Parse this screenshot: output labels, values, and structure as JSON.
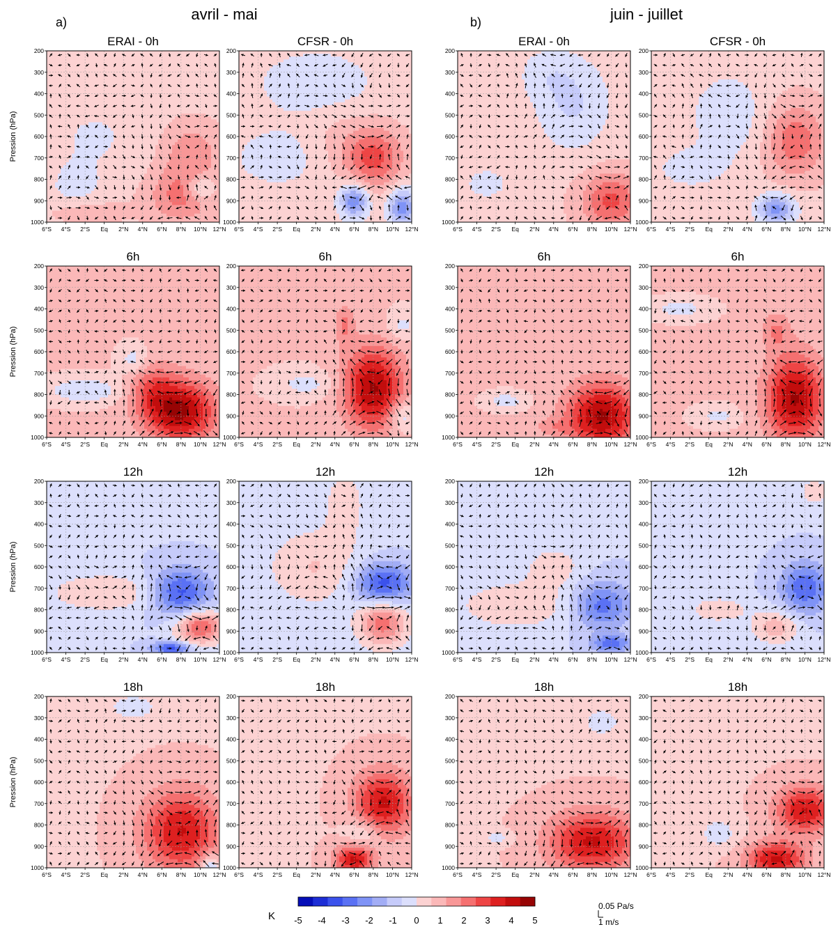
{
  "chart_data": {
    "type": "heatmap",
    "headers": {
      "group_a_letter": "a)",
      "group_a_title": "avril - mai",
      "group_b_letter": "b)",
      "group_b_title": "juin - juillet"
    },
    "ylabel": "Pression (hPa)",
    "y_ticks": [
      "200",
      "300",
      "400",
      "500",
      "600",
      "700",
      "800",
      "900",
      "1000"
    ],
    "y_levels": [
      200,
      300,
      400,
      500,
      600,
      700,
      800,
      900,
      1000
    ],
    "x_ticks": [
      "6°S",
      "4°S",
      "2°S",
      "Eq",
      "2°N",
      "4°N",
      "6°N",
      "8°N",
      "10°N",
      "12°N"
    ],
    "x_values": [
      -6,
      -4,
      -2,
      0,
      2,
      4,
      6,
      8,
      10,
      12
    ],
    "xlim": [
      -6,
      12
    ],
    "ylim": [
      1000,
      200
    ],
    "column_titles": [
      "ERAI - 0h",
      "CFSR - 0h",
      "ERAI - 0h",
      "CFSR - 0h"
    ],
    "row_titles": [
      "6h",
      "12h",
      "18h"
    ],
    "colorbar": {
      "unit": "K",
      "ticks": [
        "-5",
        "-4",
        "-3",
        "-2",
        "-1",
        "0",
        "1",
        "2",
        "3",
        "4",
        "5"
      ],
      "bounds": [
        -5,
        5
      ],
      "colors": [
        "#050eb8",
        "#1d2ed6",
        "#3b52ec",
        "#5a71f4",
        "#7f93f6",
        "#a2adf5",
        "#c6cbfa",
        "#dcdffc",
        "#fcd2d2",
        "#fbb8b8",
        "#f89797",
        "#f57070",
        "#ee4545",
        "#de2020",
        "#c20d0d",
        "#970404"
      ]
    },
    "vector_reference": {
      "vertical": "0.05 Pa/s",
      "horizontal": "1 m/s"
    },
    "panels": [
      {
        "row": 0,
        "col": 0,
        "title": "ERAI - 0h",
        "sign": 1,
        "base": 0.45,
        "blobs": [
          [
            8,
            880,
            3.4,
            1.6,
            120,
            [
              0.2,
              1.0
            ]
          ],
          [
            -2,
            950,
            4,
            0.7,
            60,
            [
              0.2,
              1.0
            ]
          ],
          [
            9,
            680,
            3,
            1.3,
            140,
            [
              0.5,
              1.0
            ]
          ],
          [
            -1,
            600,
            6,
            -0.5,
            200,
            [
              0.2,
              1.0
            ]
          ],
          [
            -3,
            850,
            3,
            -0.6,
            120,
            [
              0.2,
              1.0
            ]
          ],
          [
            10,
            840,
            1.5,
            -1.5,
            60,
            [
              0.4,
              1.0
            ]
          ]
        ]
      },
      {
        "row": 0,
        "col": 1,
        "title": "CFSR - 0h",
        "sign": 1,
        "base": 0.4,
        "blobs": [
          [
            8,
            700,
            3,
            2.4,
            140,
            [
              0.3,
              1.0
            ]
          ],
          [
            6,
            900,
            1.5,
            -2.8,
            80,
            [
              0.3,
              1.0
            ]
          ],
          [
            11,
            930,
            1.5,
            -2.6,
            90,
            [
              0.3,
              1.0
            ]
          ],
          [
            2,
            350,
            6,
            -0.9,
            150,
            [
              0.3,
              1.0
            ]
          ],
          [
            -2,
            700,
            5,
            -0.7,
            150,
            [
              0.3,
              1.0
            ]
          ],
          [
            4,
            600,
            3,
            0.4,
            150,
            [
              0.3,
              1.0
            ]
          ]
        ]
      },
      {
        "row": 0,
        "col": 2,
        "title": "ERAI - 0h",
        "sign": 1,
        "base": 0.5,
        "blobs": [
          [
            10,
            900,
            3,
            2.2,
            130,
            [
              0.3,
              1.0
            ]
          ],
          [
            6,
            450,
            4,
            -1.2,
            220,
            [
              0.5,
              1.0
            ]
          ],
          [
            -3,
            820,
            2.5,
            -0.8,
            80,
            [
              0.3,
              1.0
            ]
          ],
          [
            3,
            300,
            3,
            -0.6,
            120,
            [
              0.3,
              1.0
            ]
          ]
        ]
      },
      {
        "row": 0,
        "col": 3,
        "title": "CFSR - 0h",
        "sign": 1,
        "base": 0.45,
        "blobs": [
          [
            9,
            620,
            3,
            1.9,
            170,
            [
              0.3,
              1.0
            ]
          ],
          [
            7,
            940,
            2,
            -2.6,
            70,
            [
              0.3,
              1.0
            ]
          ],
          [
            2,
            500,
            4,
            -0.9,
            200,
            [
              0.3,
              1.0
            ]
          ],
          [
            -2,
            750,
            4,
            -0.7,
            100,
            [
              0.3,
              1.0
            ]
          ]
        ]
      },
      {
        "row": 1,
        "col": 0,
        "title": "6h",
        "sign": -1,
        "base": 0.7,
        "blobs": [
          [
            8,
            880,
            3.5,
            3.8,
            140,
            [
              0.2,
              1.0
            ]
          ],
          [
            5,
            780,
            2.5,
            1.6,
            130,
            [
              0.2,
              1.0
            ]
          ],
          [
            -2,
            780,
            4,
            -1.3,
            60,
            [
              0.3,
              1.0
            ]
          ],
          [
            3,
            640,
            1.5,
            -1.1,
            70,
            [
              0.3,
              1.0
            ]
          ]
        ]
      },
      {
        "row": 1,
        "col": 1,
        "title": "6h",
        "sign": -1,
        "base": 0.65,
        "blobs": [
          [
            8,
            770,
            3,
            3.8,
            190,
            [
              0.2,
              1.0
            ]
          ],
          [
            5,
            470,
            1,
            1.3,
            90,
            [
              0.3,
              1.0
            ]
          ],
          [
            11,
            900,
            1.5,
            -1.4,
            70,
            [
              0.3,
              1.0
            ]
          ],
          [
            1,
            750,
            3,
            -0.9,
            60,
            [
              0.3,
              1.0
            ]
          ],
          [
            11,
            480,
            1.5,
            -0.9,
            70,
            [
              0.3,
              1.0
            ]
          ]
        ]
      },
      {
        "row": 1,
        "col": 2,
        "title": "6h",
        "sign": -1,
        "base": 0.7,
        "blobs": [
          [
            9,
            900,
            3.5,
            3.8,
            150,
            [
              0.2,
              1.0
            ]
          ],
          [
            -1,
            830,
            2,
            -1.1,
            40,
            [
              0.3,
              1.0
            ]
          ],
          [
            4,
            950,
            2,
            0.8,
            40,
            [
              0.3,
              1.0
            ]
          ]
        ]
      },
      {
        "row": 1,
        "col": 3,
        "title": "6h",
        "sign": -1,
        "base": 0.65,
        "blobs": [
          [
            9,
            820,
            3,
            3.8,
            200,
            [
              0.2,
              1.0
            ]
          ],
          [
            7,
            500,
            1.5,
            1.2,
            90,
            [
              0.3,
              1.0
            ]
          ],
          [
            -3,
            400,
            2.5,
            -1.1,
            40,
            [
              0.3,
              1.0
            ]
          ],
          [
            1,
            900,
            2,
            -0.9,
            40,
            [
              0.3,
              1.0
            ]
          ]
        ]
      },
      {
        "row": 2,
        "col": 0,
        "title": "12h",
        "sign": 1,
        "base": -0.6,
        "blobs": [
          [
            8,
            720,
            3,
            -2.8,
            110,
            [
              0.3,
              1.0
            ]
          ],
          [
            10,
            880,
            2.5,
            3.2,
            80,
            [
              0.3,
              1.0
            ]
          ],
          [
            0,
            720,
            6,
            1.2,
            90,
            [
              0.3,
              1.0
            ]
          ],
          [
            7,
            980,
            2,
            -2.8,
            30,
            [
              0.3,
              1.0
            ]
          ]
        ]
      },
      {
        "row": 2,
        "col": 1,
        "title": "12h",
        "sign": 1,
        "base": -0.55,
        "blobs": [
          [
            9,
            680,
            3,
            -3.0,
            100,
            [
              0.3,
              1.0
            ]
          ],
          [
            9,
            860,
            2.5,
            2.8,
            110,
            [
              0.3,
              1.0
            ]
          ],
          [
            2,
            600,
            5,
            1.2,
            180,
            [
              0.3,
              1.0
            ]
          ],
          [
            5,
            300,
            2,
            1.0,
            150,
            [
              0.3,
              1.0
            ]
          ]
        ]
      },
      {
        "row": 2,
        "col": 2,
        "title": "12h",
        "sign": 1,
        "base": -0.6,
        "blobs": [
          [
            9,
            780,
            3,
            -2.2,
            110,
            [
              0.3,
              1.0
            ]
          ],
          [
            0,
            780,
            6,
            1.2,
            110,
            [
              0.3,
              1.0
            ]
          ],
          [
            10,
            960,
            2,
            -2.3,
            40,
            [
              0.3,
              1.0
            ]
          ],
          [
            4,
            600,
            3,
            1.0,
            100,
            [
              0.3,
              1.0
            ]
          ]
        ]
      },
      {
        "row": 2,
        "col": 3,
        "title": "12h",
        "sign": 1,
        "base": -0.6,
        "blobs": [
          [
            10,
            700,
            2.5,
            -2.4,
            120,
            [
              0.3,
              1.0
            ]
          ],
          [
            7,
            880,
            2.5,
            1.6,
            80,
            [
              0.3,
              1.0
            ]
          ],
          [
            1,
            800,
            3,
            1.1,
            60,
            [
              0.3,
              1.0
            ]
          ],
          [
            11,
            250,
            1.5,
            1.1,
            60,
            [
              0.3,
              1.0
            ]
          ]
        ]
      },
      {
        "row": 3,
        "col": 0,
        "title": "18h",
        "sign": 1,
        "base": 0.6,
        "blobs": [
          [
            8,
            830,
            4,
            3.2,
            190,
            [
              0.3,
              1.0
            ]
          ],
          [
            3,
            250,
            3,
            -0.9,
            70,
            [
              0.3,
              1.0
            ]
          ],
          [
            11,
            1000,
            1,
            -2.0,
            60,
            [
              0.3,
              1.0
            ]
          ]
        ]
      },
      {
        "row": 3,
        "col": 1,
        "title": "18h",
        "sign": 1,
        "base": 0.6,
        "blobs": [
          [
            9,
            700,
            3,
            3.3,
            150,
            [
              0.3,
              1.0
            ]
          ],
          [
            6,
            960,
            2,
            3.3,
            70,
            [
              0.3,
              1.0
            ]
          ],
          [
            7,
            840,
            2,
            -1.2,
            80,
            [
              0.3,
              1.0
            ]
          ]
        ]
      },
      {
        "row": 3,
        "col": 2,
        "title": "18h",
        "sign": 1,
        "base": 0.6,
        "blobs": [
          [
            8,
            880,
            4.5,
            3.3,
            140,
            [
              0.3,
              1.0
            ]
          ],
          [
            9,
            320,
            2,
            -1.0,
            70,
            [
              0.3,
              1.0
            ]
          ],
          [
            -2,
            860,
            1.5,
            -0.9,
            30,
            [
              0.3,
              1.0
            ]
          ]
        ]
      },
      {
        "row": 3,
        "col": 3,
        "title": "18h",
        "sign": 1,
        "base": 0.6,
        "blobs": [
          [
            10,
            730,
            3,
            3.2,
            110,
            [
              0.3,
              1.0
            ]
          ],
          [
            7,
            960,
            3,
            3.3,
            80,
            [
              0.3,
              1.0
            ]
          ],
          [
            1,
            840,
            2,
            -1.0,
            70,
            [
              0.3,
              1.0
            ]
          ]
        ]
      }
    ]
  }
}
